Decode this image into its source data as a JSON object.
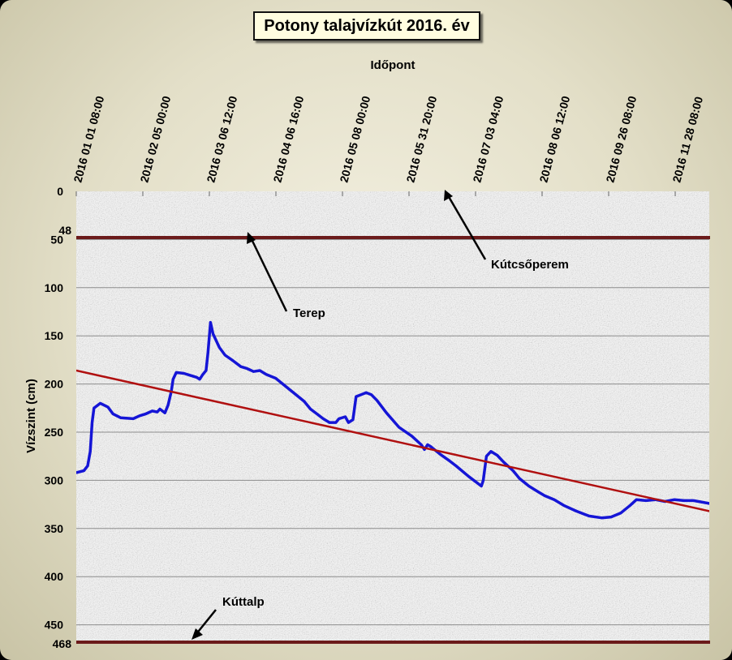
{
  "chart_data": {
    "type": "line",
    "title": "Potony talajvízkút 2016. év",
    "xlabel": "Időpont",
    "ylabel": "Vízszint (cm)",
    "x_tick_labels": [
      "2016 01 01 08:00",
      "2016 02 05 00:00",
      "2016 03 06 12:00",
      "2016 04 06 16:00",
      "2016 05 08 00:00",
      "2016 05 31 20:00",
      "2016 07 03 04:00",
      "2016 08 06 12:00",
      "2016 09 26 08:00",
      "2016 11 28 08:00"
    ],
    "y_ticks": [
      0,
      50,
      100,
      150,
      200,
      250,
      300,
      350,
      400,
      450
    ],
    "y_extra_labels": [
      48,
      468
    ],
    "ylim": [
      0,
      468
    ],
    "y_inverted": true,
    "grid": "horizontal",
    "series": [
      {
        "kind": "measured",
        "color": "#1515d6",
        "points": [
          [
            0.0,
            292
          ],
          [
            0.012,
            290
          ],
          [
            0.018,
            285
          ],
          [
            0.022,
            270
          ],
          [
            0.025,
            240
          ],
          [
            0.028,
            225
          ],
          [
            0.038,
            220
          ],
          [
            0.05,
            224
          ],
          [
            0.058,
            231
          ],
          [
            0.07,
            235
          ],
          [
            0.09,
            236
          ],
          [
            0.1,
            233
          ],
          [
            0.11,
            231
          ],
          [
            0.12,
            228
          ],
          [
            0.128,
            229
          ],
          [
            0.132,
            226
          ],
          [
            0.14,
            230
          ],
          [
            0.145,
            222
          ],
          [
            0.15,
            208
          ],
          [
            0.153,
            195
          ],
          [
            0.158,
            188
          ],
          [
            0.17,
            189
          ],
          [
            0.18,
            191
          ],
          [
            0.19,
            193
          ],
          [
            0.195,
            195
          ],
          [
            0.2,
            190
          ],
          [
            0.205,
            186
          ],
          [
            0.208,
            168
          ],
          [
            0.212,
            136
          ],
          [
            0.216,
            148
          ],
          [
            0.226,
            162
          ],
          [
            0.235,
            170
          ],
          [
            0.248,
            176
          ],
          [
            0.26,
            182
          ],
          [
            0.27,
            184
          ],
          [
            0.28,
            187
          ],
          [
            0.29,
            186
          ],
          [
            0.3,
            190
          ],
          [
            0.315,
            194
          ],
          [
            0.33,
            202
          ],
          [
            0.345,
            210
          ],
          [
            0.36,
            218
          ],
          [
            0.37,
            226
          ],
          [
            0.38,
            231
          ],
          [
            0.39,
            236
          ],
          [
            0.4,
            240
          ],
          [
            0.41,
            240
          ],
          [
            0.415,
            236
          ],
          [
            0.425,
            234
          ],
          [
            0.43,
            240
          ],
          [
            0.437,
            237
          ],
          [
            0.442,
            213
          ],
          [
            0.45,
            211
          ],
          [
            0.458,
            209
          ],
          [
            0.466,
            211
          ],
          [
            0.475,
            217
          ],
          [
            0.49,
            230
          ],
          [
            0.51,
            245
          ],
          [
            0.53,
            254
          ],
          [
            0.545,
            263
          ],
          [
            0.55,
            268
          ],
          [
            0.555,
            263
          ],
          [
            0.56,
            265
          ],
          [
            0.575,
            273
          ],
          [
            0.59,
            280
          ],
          [
            0.6,
            285
          ],
          [
            0.62,
            296
          ],
          [
            0.64,
            306
          ],
          [
            0.643,
            300
          ],
          [
            0.648,
            275
          ],
          [
            0.655,
            270
          ],
          [
            0.665,
            274
          ],
          [
            0.675,
            281
          ],
          [
            0.69,
            290
          ],
          [
            0.7,
            298
          ],
          [
            0.715,
            306
          ],
          [
            0.73,
            312
          ],
          [
            0.74,
            316
          ],
          [
            0.755,
            320
          ],
          [
            0.77,
            326
          ],
          [
            0.79,
            332
          ],
          [
            0.81,
            337
          ],
          [
            0.83,
            339
          ],
          [
            0.845,
            338
          ],
          [
            0.86,
            334
          ],
          [
            0.875,
            326
          ],
          [
            0.885,
            320
          ],
          [
            0.9,
            321
          ],
          [
            0.915,
            320
          ],
          [
            0.93,
            322
          ],
          [
            0.945,
            320
          ],
          [
            0.96,
            321
          ],
          [
            0.975,
            321
          ],
          [
            1.0,
            324
          ]
        ]
      },
      {
        "kind": "trend",
        "color": "#b01010",
        "points": [
          [
            0.0,
            186
          ],
          [
            1.0,
            332
          ]
        ]
      }
    ],
    "reference_lines": [
      {
        "value": 48,
        "color": "#6b1a1a"
      },
      {
        "value": 468,
        "color": "#6b1a1a"
      }
    ],
    "annotations": [
      {
        "text": "Kútcsőperem"
      },
      {
        "text": "Terep"
      },
      {
        "text": "Kúttalp"
      }
    ]
  }
}
